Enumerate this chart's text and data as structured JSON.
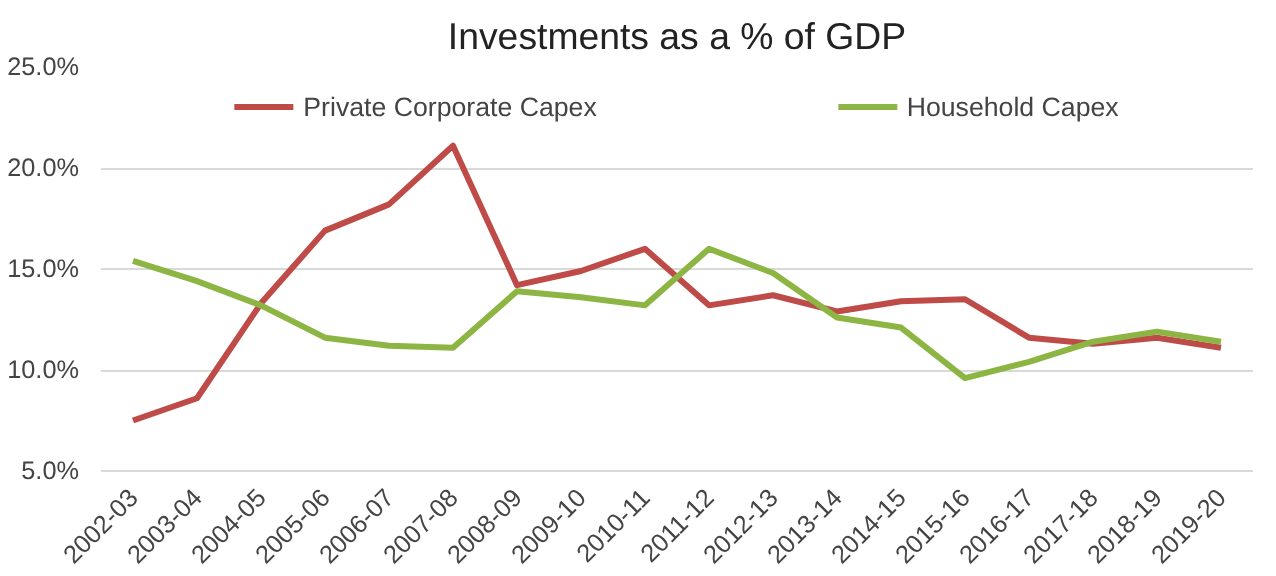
{
  "chart_data": {
    "type": "line",
    "title": "Investments as a % of GDP",
    "categories": [
      "2002-03",
      "2003-04",
      "2004-05",
      "2005-06",
      "2006-07",
      "2007-08",
      "2008-09",
      "2009-10",
      "2010-11",
      "2011-12",
      "2012-13",
      "2013-14",
      "2014-15",
      "2015-16",
      "2016-17",
      "2017-18",
      "2018-19",
      "2019-20"
    ],
    "series": [
      {
        "name": "Private Corporate Capex",
        "color": "#be4b48",
        "values": [
          7.5,
          8.6,
          13.3,
          16.9,
          18.2,
          21.1,
          14.2,
          14.9,
          16.0,
          13.2,
          13.7,
          12.9,
          13.4,
          13.5,
          11.6,
          11.3,
          11.6,
          11.1
        ]
      },
      {
        "name": "Household Capex",
        "color": "#8db544",
        "values": [
          15.4,
          14.4,
          13.2,
          11.6,
          11.2,
          11.1,
          13.9,
          13.6,
          13.2,
          16.0,
          14.8,
          12.6,
          12.1,
          9.6,
          10.4,
          11.4,
          11.9,
          11.4
        ]
      }
    ],
    "ylim": [
      5,
      25
    ],
    "yticks": [
      {
        "value": 5,
        "label": "5.0%"
      },
      {
        "value": 10,
        "label": "10.0%"
      },
      {
        "value": 15,
        "label": "15.0%"
      },
      {
        "value": 20,
        "label": "20.0%"
      },
      {
        "value": 25,
        "label": "25.0%"
      }
    ],
    "grid": "y",
    "legend": "top",
    "marker": "none",
    "line_style": "solid"
  }
}
